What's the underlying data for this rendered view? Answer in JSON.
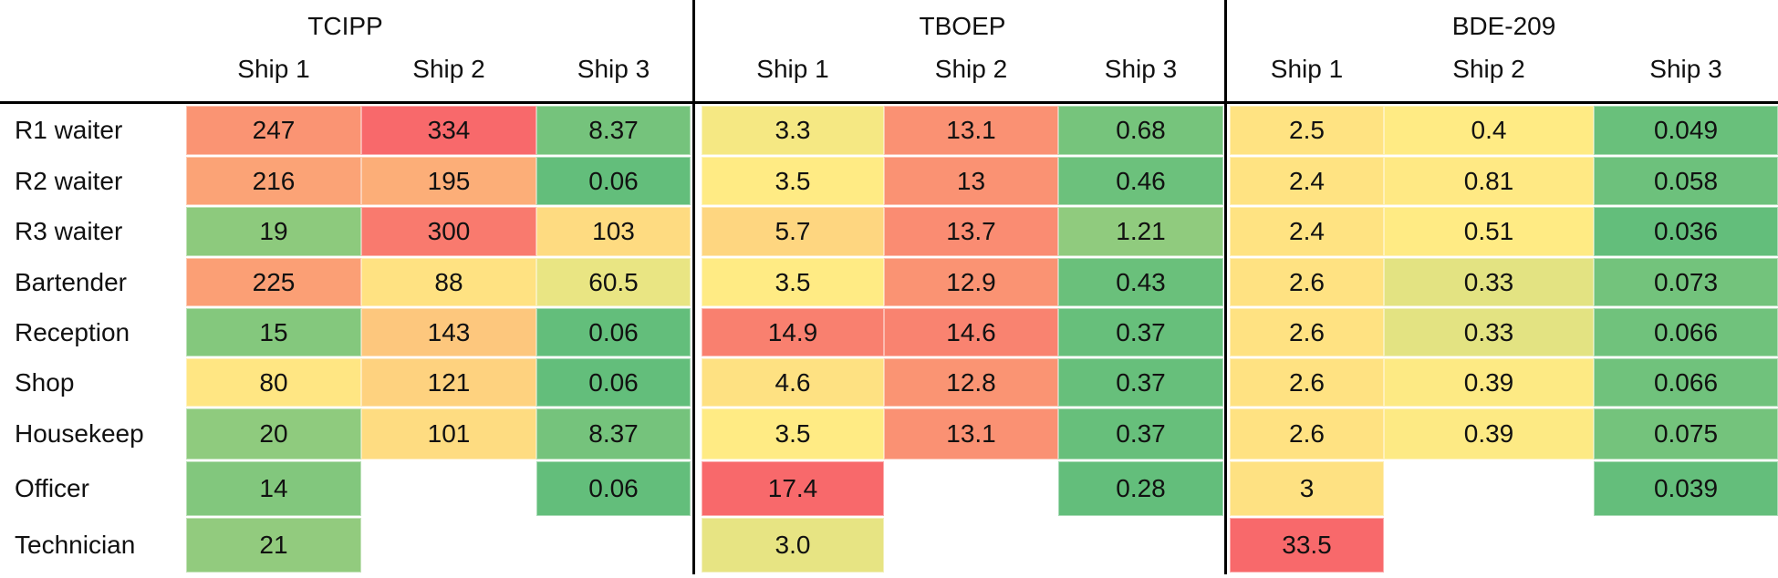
{
  "chart_data": {
    "type": "heatmap",
    "groups": [
      "TCIPP",
      "TBOEP",
      "BDE-209"
    ],
    "columns_per_group": [
      "Ship 1",
      "Ship 2",
      "Ship 3"
    ],
    "rows": [
      "R1 waiter",
      "R2 waiter",
      "R3 waiter",
      "Bartender",
      "Reception",
      "Shop",
      "Housekeep",
      "Officer",
      "Technician"
    ],
    "values": {
      "TCIPP": [
        [
          "247",
          "334",
          "8.37"
        ],
        [
          "216",
          "195",
          "0.06"
        ],
        [
          "19",
          "300",
          "103"
        ],
        [
          "225",
          "88",
          "60.5"
        ],
        [
          "15",
          "143",
          "0.06"
        ],
        [
          "80",
          "121",
          "0.06"
        ],
        [
          "20",
          "101",
          "8.37"
        ],
        [
          "14",
          null,
          "0.06"
        ],
        [
          "21",
          null,
          null
        ]
      ],
      "TBOEP": [
        [
          "3.3",
          "13.1",
          "0.68"
        ],
        [
          "3.5",
          "13",
          "0.46"
        ],
        [
          "5.7",
          "13.7",
          "1.21"
        ],
        [
          "3.5",
          "12.9",
          "0.43"
        ],
        [
          "14.9",
          "14.6",
          "0.37"
        ],
        [
          "4.6",
          "12.8",
          "0.37"
        ],
        [
          "3.5",
          "13.1",
          "0.37"
        ],
        [
          "17.4",
          null,
          "0.28"
        ],
        [
          "3.0",
          null,
          null
        ]
      ],
      "BDE-209": [
        [
          "2.5",
          "0.4",
          "0.049"
        ],
        [
          "2.4",
          "0.81",
          "0.058"
        ],
        [
          "2.4",
          "0.51",
          "0.036"
        ],
        [
          "2.6",
          "0.33",
          "0.073"
        ],
        [
          "2.6",
          "0.33",
          "0.066"
        ],
        [
          "2.6",
          "0.39",
          "0.066"
        ],
        [
          "2.6",
          "0.39",
          "0.075"
        ],
        [
          "3",
          null,
          "0.039"
        ],
        [
          "33.5",
          null,
          null
        ]
      ]
    },
    "color_scale": {
      "type": "3-color scale per compound group",
      "min_color": "#63BE7B",
      "mid_color": "#FFEB84",
      "max_color": "#F8696B",
      "midpoint": "50th percentile",
      "high_is": "red"
    },
    "layout_hints": {
      "grid": "off",
      "group_dividers": "vertical black lines",
      "header_separator": "horizontal black line"
    }
  },
  "colors": {
    "text": "#111111",
    "rule": "#000000",
    "background": "#ffffff"
  }
}
